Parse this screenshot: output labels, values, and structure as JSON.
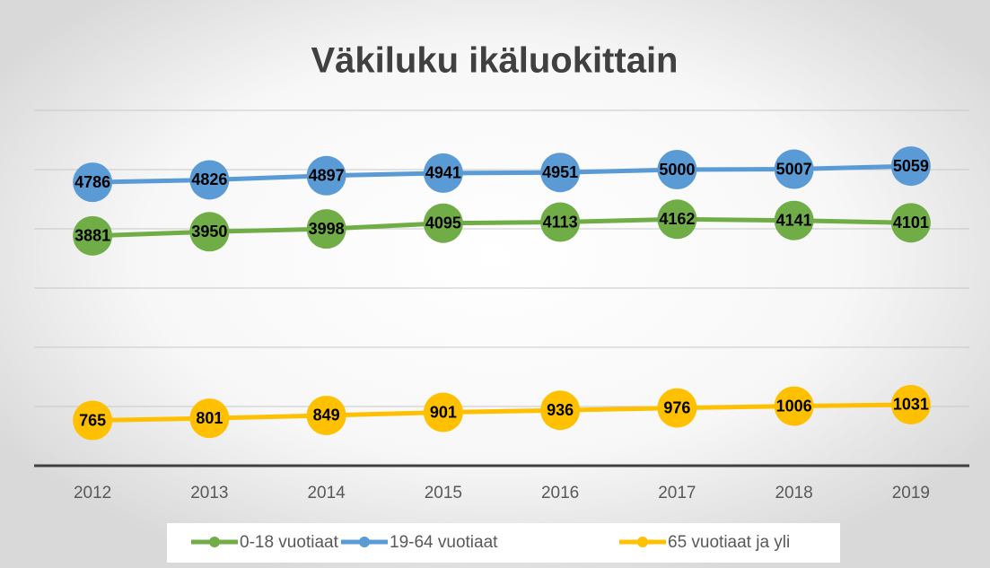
{
  "chart_data": {
    "type": "line",
    "title": "Väkiluku ikäluokittain",
    "categories": [
      "2012",
      "2013",
      "2014",
      "2015",
      "2016",
      "2017",
      "2018",
      "2019"
    ],
    "series": [
      {
        "name": "0-18 vuotiaat",
        "color": "#70ad47",
        "values": [
          3881,
          3950,
          3998,
          4095,
          4113,
          4162,
          4141,
          4101
        ]
      },
      {
        "name": "19-64 vuotiaat",
        "color": "#5b9bd5",
        "values": [
          4786,
          4826,
          4897,
          4941,
          4951,
          5000,
          5007,
          5059
        ]
      },
      {
        "name": "65 vuotiaat ja yli",
        "color": "#ffc000",
        "values": [
          765,
          801,
          849,
          901,
          936,
          976,
          1006,
          1031
        ]
      }
    ],
    "ylim": [
      0,
      6000
    ],
    "yticks": [
      0,
      1000,
      2000,
      3000,
      4000,
      5000,
      6000
    ],
    "grid": true,
    "legend": "bottom"
  }
}
